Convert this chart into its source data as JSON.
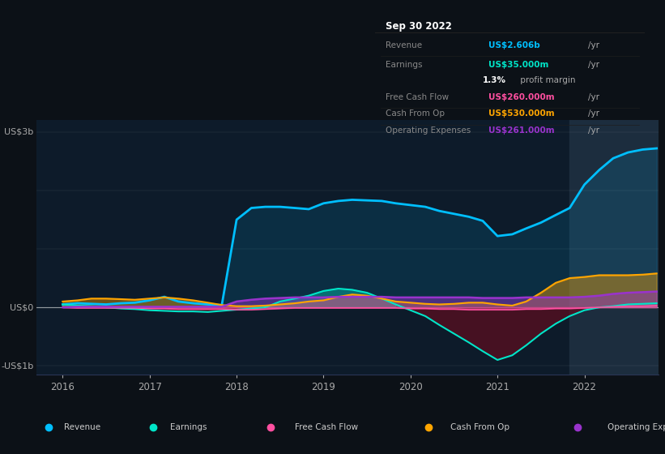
{
  "bg_color": "#0c1117",
  "chart_bg": "#0d1b2a",
  "highlight_bg": "#162030",
  "ylim": [
    -1.15,
    3.2
  ],
  "ytick_positions": [
    -1,
    0,
    3
  ],
  "ytick_labels_map": {
    "-1": "-US$1b",
    "0": "US$0",
    "3": "US$3b"
  },
  "xlim": [
    2015.7,
    2022.85
  ],
  "xticks": [
    2016,
    2017,
    2018,
    2019,
    2020,
    2021,
    2022
  ],
  "highlight_x_start": 2021.83,
  "highlight_x_end": 2022.85,
  "revenue_color": "#00bfff",
  "earnings_color": "#00e5c8",
  "fcf_color": "#ff4fa0",
  "cashfromop_color": "#ffa500",
  "opex_color": "#9933cc",
  "legend_bg": "#141a26",
  "legend_border": "#2a3050",
  "tooltip_title": "Sep 30 2022",
  "tooltip_revenue_label": "Revenue",
  "tooltip_revenue_val": "US$2.606b",
  "tooltip_earnings_label": "Earnings",
  "tooltip_earnings_val": "US$35.000m",
  "tooltip_margin_val": "1.3%",
  "tooltip_margin_text": " profit margin",
  "tooltip_fcf_label": "Free Cash Flow",
  "tooltip_fcf_val": "US$260.000m",
  "tooltip_cashfromop_label": "Cash From Op",
  "tooltip_cashfromop_val": "US$530.000m",
  "tooltip_opex_label": "Operating Expenses",
  "tooltip_opex_val": "US$261.000m",
  "x": [
    2016.0,
    2016.17,
    2016.33,
    2016.5,
    2016.67,
    2016.83,
    2017.0,
    2017.17,
    2017.33,
    2017.5,
    2017.67,
    2017.83,
    2018.0,
    2018.17,
    2018.33,
    2018.5,
    2018.67,
    2018.83,
    2019.0,
    2019.17,
    2019.33,
    2019.5,
    2019.67,
    2019.83,
    2020.0,
    2020.17,
    2020.33,
    2020.5,
    2020.67,
    2020.83,
    2021.0,
    2021.17,
    2021.33,
    2021.5,
    2021.67,
    2021.83,
    2022.0,
    2022.17,
    2022.33,
    2022.5,
    2022.67,
    2022.83
  ],
  "revenue": [
    0.05,
    0.07,
    0.06,
    0.05,
    0.07,
    0.08,
    0.12,
    0.18,
    0.1,
    0.07,
    0.05,
    0.04,
    1.5,
    1.7,
    1.72,
    1.72,
    1.7,
    1.68,
    1.78,
    1.82,
    1.84,
    1.83,
    1.82,
    1.78,
    1.75,
    1.72,
    1.65,
    1.6,
    1.55,
    1.48,
    1.22,
    1.25,
    1.35,
    1.45,
    1.58,
    1.7,
    2.1,
    2.35,
    2.55,
    2.65,
    2.7,
    2.72
  ],
  "earnings": [
    0.05,
    0.03,
    0.02,
    0.0,
    -0.02,
    -0.03,
    -0.05,
    -0.06,
    -0.07,
    -0.07,
    -0.08,
    -0.06,
    -0.04,
    -0.02,
    0.0,
    0.1,
    0.15,
    0.2,
    0.28,
    0.32,
    0.3,
    0.25,
    0.15,
    0.05,
    -0.05,
    -0.15,
    -0.3,
    -0.45,
    -0.6,
    -0.75,
    -0.9,
    -0.82,
    -0.65,
    -0.45,
    -0.28,
    -0.15,
    -0.05,
    0.0,
    0.02,
    0.05,
    0.06,
    0.07
  ],
  "fcf": [
    0.0,
    -0.01,
    -0.01,
    -0.01,
    -0.01,
    -0.01,
    -0.02,
    -0.02,
    -0.03,
    -0.03,
    -0.03,
    -0.03,
    -0.04,
    -0.04,
    -0.03,
    -0.02,
    -0.01,
    -0.01,
    -0.01,
    -0.01,
    -0.01,
    -0.01,
    -0.01,
    -0.01,
    -0.02,
    -0.02,
    -0.03,
    -0.03,
    -0.04,
    -0.04,
    -0.04,
    -0.04,
    -0.03,
    -0.03,
    -0.02,
    -0.02,
    -0.01,
    0.0,
    0.01,
    0.02,
    0.02,
    0.03
  ],
  "cashfromop": [
    0.1,
    0.12,
    0.15,
    0.15,
    0.14,
    0.13,
    0.15,
    0.17,
    0.15,
    0.12,
    0.08,
    0.04,
    0.02,
    0.02,
    0.03,
    0.05,
    0.07,
    0.1,
    0.12,
    0.18,
    0.22,
    0.2,
    0.15,
    0.1,
    0.08,
    0.06,
    0.05,
    0.06,
    0.08,
    0.08,
    0.05,
    0.03,
    0.1,
    0.25,
    0.42,
    0.5,
    0.52,
    0.55,
    0.55,
    0.55,
    0.56,
    0.58
  ],
  "opex": [
    0.0,
    0.01,
    0.01,
    0.01,
    0.01,
    0.01,
    0.01,
    0.01,
    0.01,
    0.01,
    0.01,
    0.01,
    0.1,
    0.13,
    0.15,
    0.16,
    0.17,
    0.17,
    0.17,
    0.18,
    0.18,
    0.18,
    0.18,
    0.17,
    0.17,
    0.17,
    0.17,
    0.17,
    0.17,
    0.16,
    0.16,
    0.16,
    0.17,
    0.17,
    0.17,
    0.17,
    0.18,
    0.2,
    0.23,
    0.25,
    0.26,
    0.27
  ]
}
